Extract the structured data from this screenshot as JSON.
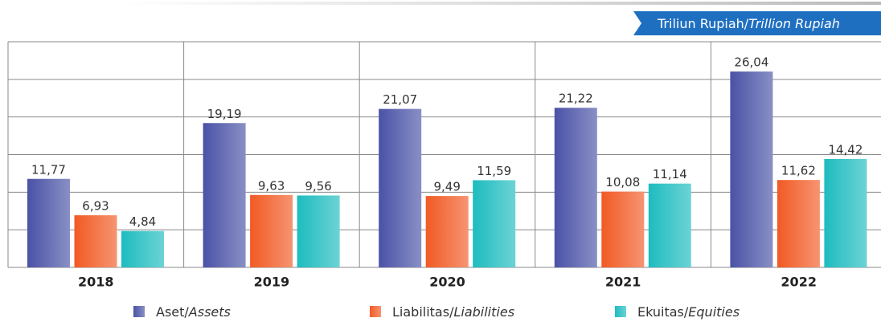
{
  "chart_data": {
    "type": "bar",
    "unit": "Triliun Rupiah/Trillion Rupiah",
    "categories": [
      "2018",
      "2019",
      "2020",
      "2021",
      "2022"
    ],
    "series": [
      {
        "name": "Aset/Assets",
        "color": "#4a52a6",
        "values": [
          11.77,
          19.19,
          21.07,
          21.22,
          26.04
        ],
        "value_labels": [
          "11,77",
          "19,19",
          "21,07",
          "21,22",
          "26,04"
        ]
      },
      {
        "name": "Liabilitas/Liabilities",
        "color": "#f15a24",
        "values": [
          6.93,
          9.63,
          9.49,
          10.08,
          11.62
        ],
        "value_labels": [
          "6,93",
          "9,63",
          "9,49",
          "10,08",
          "11,62"
        ]
      },
      {
        "name": "Ekuitas/Equities",
        "color": "#1dbcbf",
        "values": [
          4.84,
          9.56,
          11.59,
          11.14,
          14.42
        ],
        "value_labels": [
          "4,84",
          "9,56",
          "11,59",
          "11,14",
          "14,42"
        ]
      }
    ],
    "ylim": [
      0,
      30
    ],
    "yticks": [
      0,
      5,
      10,
      15,
      20,
      25,
      30
    ],
    "grid": true
  }
}
